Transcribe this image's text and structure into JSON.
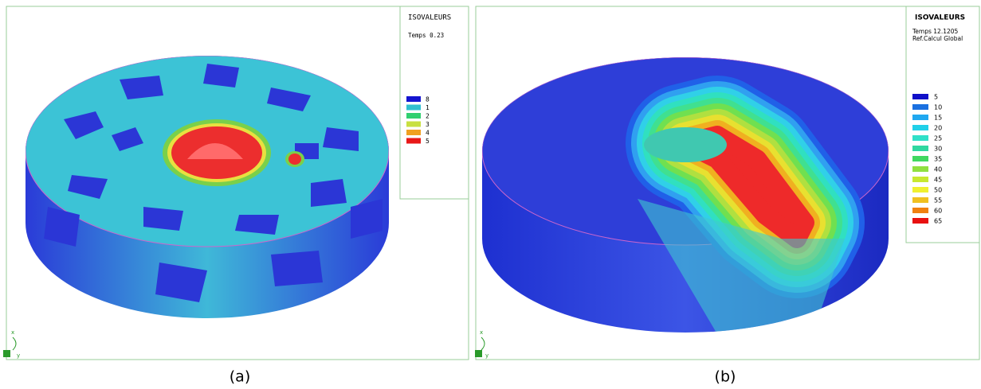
{
  "panel_a": {
    "legend_title": "ISOVALEURS",
    "time": "Temps 0.23",
    "legend": [
      "8",
      "1",
      "2",
      "3",
      "4",
      "5"
    ],
    "axis_x": "x",
    "axis_y": "y",
    "caption": "(a)"
  },
  "panel_b": {
    "legend_title": "ISOVALEURS",
    "time": "Temps 12.1205",
    "reference": "Ref.Calcul Global",
    "legend": [
      "5",
      "10",
      "15",
      "20",
      "25",
      "30",
      "35",
      "40",
      "45",
      "50",
      "55",
      "60",
      "65"
    ],
    "axis_x": "x",
    "axis_y": "y",
    "caption": "(b)"
  }
}
